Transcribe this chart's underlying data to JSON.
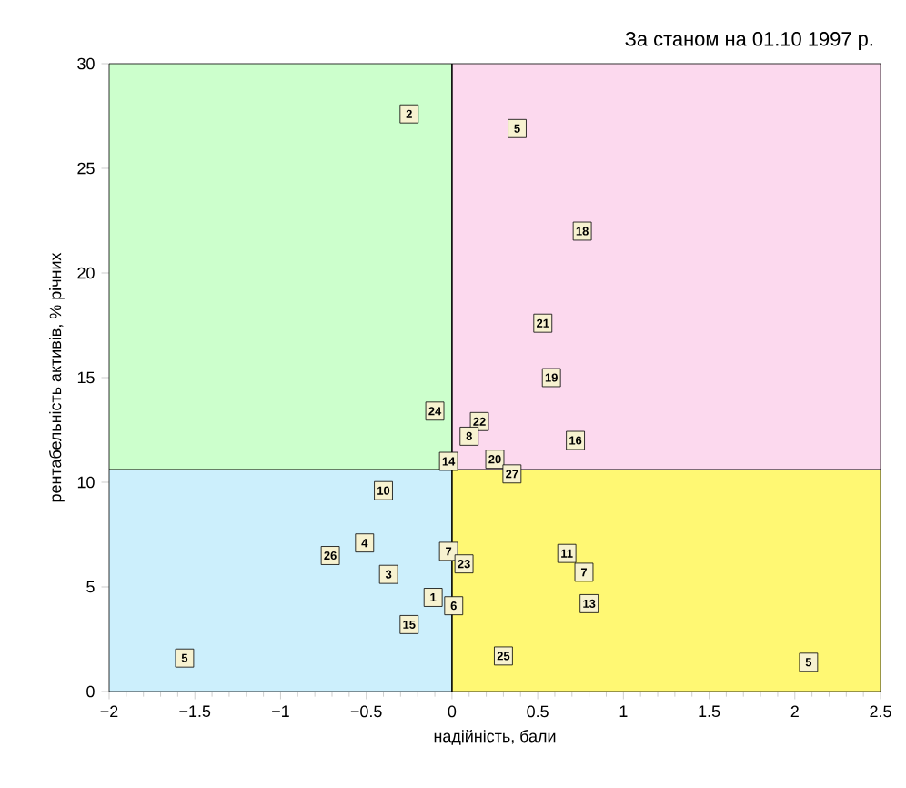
{
  "chart_data": {
    "type": "scatter",
    "title": "За станом на 01.10 1997 р.",
    "xlabel": "надійність, бали",
    "ylabel": "рентабельність активів, % річних",
    "xlim": [
      -2,
      2.5
    ],
    "xticks": [
      {
        "value": -2,
        "label": "−2"
      },
      {
        "value": -1.5,
        "label": "−1.5"
      },
      {
        "value": -1,
        "label": "−1"
      },
      {
        "value": -0.5,
        "label": "−0.5"
      },
      0,
      0.5,
      1,
      1.5,
      2,
      2.5
    ],
    "ylim": [
      0,
      30
    ],
    "yticks": [
      0,
      5,
      10,
      15,
      20,
      25,
      30
    ],
    "marker": "square",
    "grid": false,
    "ref_lines": [
      {
        "axis": "x",
        "value": 0,
        "color": "#000000"
      },
      {
        "axis": "y",
        "value": 10.6,
        "color": "#000000"
      }
    ],
    "series": [
      {
        "color": "#f7f2d0",
        "x": [
          -0.25,
          0.38,
          0.76,
          0.53,
          0.58,
          -0.1,
          0.16,
          0.1,
          0.72,
          0.25,
          0.35,
          -0.02,
          -0.4,
          -0.51,
          -0.71,
          -0.37,
          -0.02,
          0.07,
          -0.11,
          0.01,
          -0.25,
          -1.56,
          0.67,
          0.77,
          0.8,
          0.3,
          2.08
        ],
        "values": [
          27.6,
          26.9,
          22.0,
          17.6,
          15.0,
          13.4,
          12.9,
          12.2,
          12.0,
          11.1,
          10.4,
          11.0,
          9.6,
          7.1,
          6.5,
          5.6,
          6.7,
          6.1,
          4.5,
          4.1,
          3.2,
          1.6,
          6.6,
          5.7,
          4.2,
          1.7,
          1.4
        ]
      }
    ],
    "annotations": [
      {
        "text": "2",
        "x": -0.25,
        "y": 27.6
      },
      {
        "text": "5",
        "x": 0.38,
        "y": 26.9
      },
      {
        "text": "18",
        "x": 0.76,
        "y": 22.0
      },
      {
        "text": "21",
        "x": 0.53,
        "y": 17.6
      },
      {
        "text": "19",
        "x": 0.58,
        "y": 15.0
      },
      {
        "text": "24",
        "x": -0.1,
        "y": 13.4
      },
      {
        "text": "22",
        "x": 0.16,
        "y": 12.9
      },
      {
        "text": "8",
        "x": 0.1,
        "y": 12.2
      },
      {
        "text": "16",
        "x": 0.72,
        "y": 12.0
      },
      {
        "text": "20",
        "x": 0.25,
        "y": 11.1
      },
      {
        "text": "27",
        "x": 0.35,
        "y": 10.4
      },
      {
        "text": "14",
        "x": -0.02,
        "y": 11.0
      },
      {
        "text": "10",
        "x": -0.4,
        "y": 9.6
      },
      {
        "text": "4",
        "x": -0.51,
        "y": 7.1
      },
      {
        "text": "26",
        "x": -0.71,
        "y": 6.5
      },
      {
        "text": "3",
        "x": -0.37,
        "y": 5.6
      },
      {
        "text": "7",
        "x": -0.02,
        "y": 6.7
      },
      {
        "text": "23",
        "x": 0.07,
        "y": 6.1
      },
      {
        "text": "1",
        "x": -0.11,
        "y": 4.5
      },
      {
        "text": "6",
        "x": 0.01,
        "y": 4.1
      },
      {
        "text": "15",
        "x": -0.25,
        "y": 3.2
      },
      {
        "text": "5",
        "x": -1.56,
        "y": 1.6
      },
      {
        "text": "11",
        "x": 0.67,
        "y": 6.6
      },
      {
        "text": "7",
        "x": 0.77,
        "y": 5.7
      },
      {
        "text": "13",
        "x": 0.8,
        "y": 4.2
      },
      {
        "text": "25",
        "x": 0.3,
        "y": 1.7
      },
      {
        "text": "5",
        "x": 2.08,
        "y": 1.4
      }
    ]
  }
}
